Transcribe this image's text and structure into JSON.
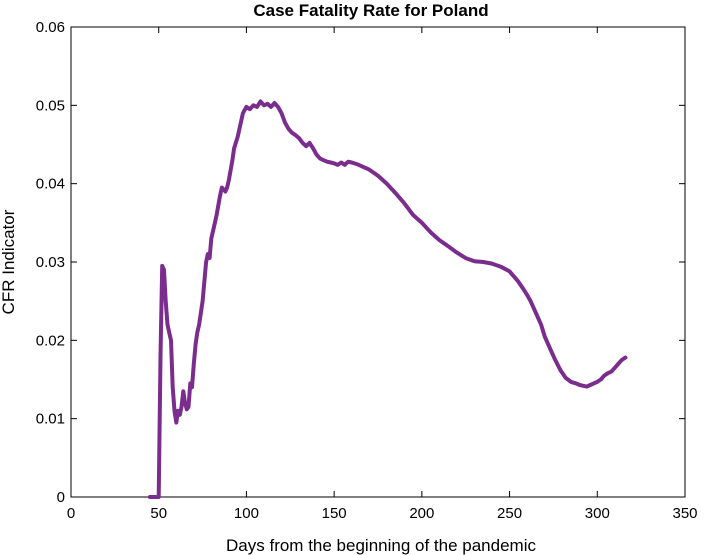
{
  "chart_data": {
    "type": "line",
    "title": "Case Fatality Rate for Poland",
    "xlabel": "Days from the beginning of the pandemic",
    "ylabel": "CFR Indicator",
    "xlim": [
      0,
      350
    ],
    "ylim": [
      0,
      0.06
    ],
    "xticks": [
      0,
      50,
      100,
      150,
      200,
      250,
      300,
      350
    ],
    "yticks": [
      0,
      0.01,
      0.02,
      0.03,
      0.04,
      0.05,
      0.06
    ],
    "xtick_labels": [
      "0",
      "50",
      "100",
      "150",
      "200",
      "250",
      "300",
      "350"
    ],
    "ytick_labels": [
      "0",
      "0.01",
      "0.02",
      "0.03",
      "0.04",
      "0.05",
      "0.06"
    ],
    "grid": false,
    "legend": "none",
    "series": [
      {
        "color": "#7b2d8e",
        "x": [
          45,
          50,
          51,
          52,
          53,
          54,
          55,
          56,
          57,
          58,
          59,
          60,
          61,
          62,
          63,
          64,
          65,
          66,
          67,
          68,
          69,
          70,
          71,
          72,
          73,
          75,
          77,
          78,
          79,
          80,
          82,
          83,
          85,
          86,
          88,
          89,
          90,
          92,
          93,
          95,
          97,
          98,
          100,
          102,
          104,
          106,
          108,
          110,
          112,
          114,
          116,
          118,
          120,
          122,
          124,
          126,
          128,
          130,
          132,
          134,
          136,
          138,
          140,
          142,
          144,
          146,
          148,
          150,
          152,
          154,
          156,
          158,
          160,
          163,
          166,
          170,
          175,
          180,
          185,
          190,
          195,
          200,
          205,
          210,
          215,
          220,
          225,
          230,
          235,
          240,
          245,
          250,
          255,
          258,
          260,
          262,
          265,
          268,
          270,
          273,
          276,
          279,
          282,
          285,
          288,
          290,
          292,
          294,
          296,
          298,
          300,
          302,
          304,
          306,
          308,
          310,
          312,
          314,
          316
        ],
        "y": [
          0,
          0,
          0.018,
          0.0295,
          0.029,
          0.025,
          0.022,
          0.021,
          0.02,
          0.014,
          0.011,
          0.0095,
          0.011,
          0.0105,
          0.0115,
          0.0135,
          0.012,
          0.0112,
          0.0115,
          0.0145,
          0.014,
          0.017,
          0.0195,
          0.021,
          0.022,
          0.025,
          0.03,
          0.031,
          0.0305,
          0.033,
          0.035,
          0.036,
          0.0385,
          0.0395,
          0.039,
          0.0395,
          0.0405,
          0.043,
          0.0445,
          0.046,
          0.048,
          0.049,
          0.0498,
          0.0495,
          0.05,
          0.0498,
          0.0505,
          0.05,
          0.0502,
          0.0498,
          0.0503,
          0.0498,
          0.049,
          0.0478,
          0.047,
          0.0465,
          0.0462,
          0.0458,
          0.0452,
          0.0448,
          0.0452,
          0.0445,
          0.0437,
          0.0432,
          0.043,
          0.0428,
          0.0427,
          0.0426,
          0.0424,
          0.0427,
          0.0424,
          0.0428,
          0.0427,
          0.0425,
          0.0422,
          0.0418,
          0.041,
          0.04,
          0.0388,
          0.0375,
          0.036,
          0.035,
          0.0338,
          0.0328,
          0.032,
          0.0312,
          0.0305,
          0.0301,
          0.03,
          0.0298,
          0.0294,
          0.0288,
          0.0275,
          0.0265,
          0.0258,
          0.025,
          0.0235,
          0.022,
          0.0205,
          0.019,
          0.0175,
          0.0162,
          0.0152,
          0.0147,
          0.0145,
          0.0143,
          0.0142,
          0.0141,
          0.0143,
          0.0145,
          0.0147,
          0.015,
          0.0155,
          0.0158,
          0.016,
          0.0165,
          0.017,
          0.0175,
          0.0178
        ]
      }
    ]
  }
}
